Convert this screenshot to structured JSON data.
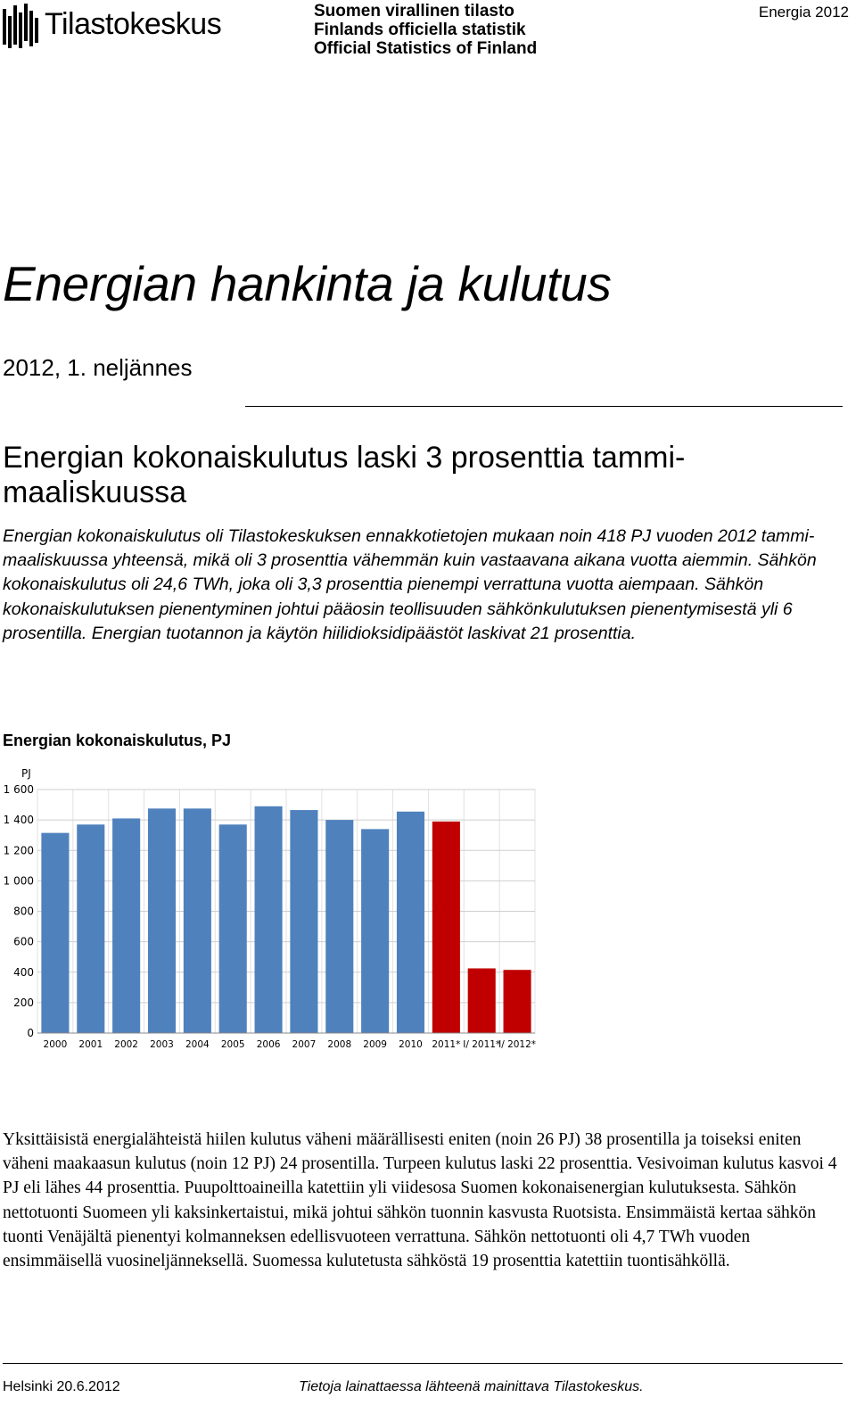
{
  "header": {
    "logo_text": "Tilastokeskus",
    "official_lines": [
      "Suomen virallinen tilasto",
      "Finlands officiella statistik",
      "Official Statistics of Finland"
    ],
    "report_label": "Energia 2012"
  },
  "title": "Energian hankinta ja kulutus",
  "period": "2012, 1. neljännes",
  "headline": "Energian kokonaiskulutus laski 3 prosenttia tammi-maaliskuussa",
  "lede": "Energian kokonaiskulutus oli Tilastokeskuksen ennakkotietojen mukaan noin 418 PJ vuoden 2012 tammi-maaliskuussa yhteensä, mikä oli 3 prosenttia vähemmän kuin vastaavana aikana vuotta aiemmin. Sähkön kokonaiskulutus oli 24,6 TWh, joka oli 3,3 prosenttia pienempi verrattuna vuotta aiempaan. Sähkön kokonaiskulutuksen pienentyminen johtui pääosin teollisuuden sähkönkulutuksen pienentymisestä yli 6 prosentilla. Energian tuotannon ja käytön hiilidioksidipäästöt laskivat 21 prosenttia.",
  "chart_heading": "Energian kokonaiskulutus, PJ",
  "chart_data": {
    "type": "bar",
    "ylabel": "PJ",
    "ylim": [
      0,
      1600
    ],
    "yticks": [
      "0",
      "200",
      "400",
      "600",
      "800",
      "1 000",
      "1 200",
      "1 400",
      "1 600"
    ],
    "categories": [
      "2000",
      "2001",
      "2002",
      "2003",
      "2004",
      "2005",
      "2006",
      "2007",
      "2008",
      "2009",
      "2010",
      "2011*",
      "I/ 2011*",
      "I/ 2012*"
    ],
    "values": [
      1315,
      1370,
      1410,
      1475,
      1475,
      1370,
      1490,
      1465,
      1400,
      1340,
      1455,
      1390,
      425,
      415
    ],
    "colors": {
      "regular": "#4f81bd",
      "highlight": "#c00000"
    },
    "highlighted": [
      false,
      false,
      false,
      false,
      false,
      false,
      false,
      false,
      false,
      false,
      false,
      true,
      true,
      true
    ],
    "grid": true
  },
  "body_text": "Yksittäisistä energialähteistä hiilen kulutus väheni määrällisesti eniten (noin 26 PJ) 38 prosentilla ja toiseksi eniten väheni maakaasun kulutus (noin 12 PJ) 24 prosentilla. Turpeen kulutus laski 22 prosenttia. Vesivoiman kulutus kasvoi 4 PJ eli lähes 44 prosenttia. Puupolttoaineilla katettiin yli viidesosa Suomen kokonaisenergian kulutuksesta. Sähkön nettotuonti Suomeen yli kaksinkertaistui, mikä johtui sähkön tuonnin kasvusta Ruotsista. Ensimmäistä kertaa sähkön tuonti Venäjältä pienentyi kolmanneksen edellisvuoteen verrattuna. Sähkön nettotuonti oli 4,7 TWh vuoden ensimmäisellä vuosineljänneksellä. Suomessa kulutetusta sähköstä 19 prosenttia katettiin tuontisähköllä.",
  "footer": {
    "place_date": "Helsinki 20.6.2012",
    "citation": "Tietoja lainattaessa lähteenä mainittava Tilastokeskus."
  }
}
